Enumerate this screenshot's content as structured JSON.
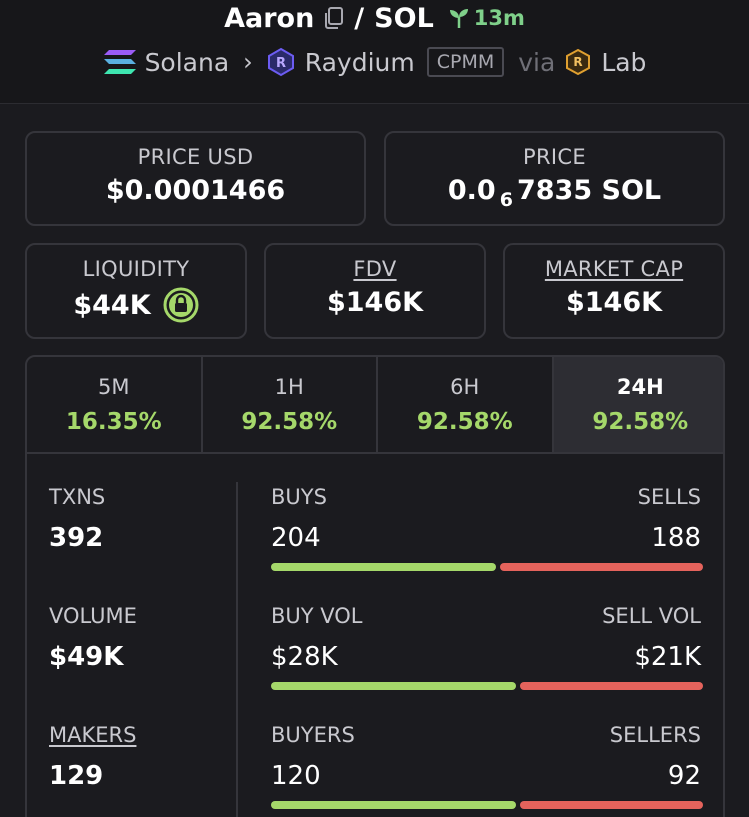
{
  "header": {
    "token_name": "Aaron",
    "separator": "/",
    "quote": "SOL",
    "age": "13m",
    "chain": "Solana",
    "dex": "Raydium",
    "pool_type": "CPMM",
    "via": "via",
    "launchpad": "Lab"
  },
  "stats": {
    "price_usd_label": "PRICE USD",
    "price_usd": "$0.0001466",
    "price_label": "PRICE",
    "price_prefix": "0.0",
    "price_zeros": "6",
    "price_suffix": "7835 SOL",
    "liquidity_label": "LIQUIDITY",
    "liquidity": "$44K",
    "fdv_label": "FDV",
    "fdv": "$146K",
    "mcap_label": "MARKET CAP",
    "mcap": "$146K"
  },
  "tabs": [
    {
      "label": "5M",
      "pct": "16.35%"
    },
    {
      "label": "1H",
      "pct": "92.58%"
    },
    {
      "label": "6H",
      "pct": "92.58%"
    },
    {
      "label": "24H",
      "pct": "92.58%"
    }
  ],
  "metrics": {
    "txns_label": "TXNS",
    "txns": "392",
    "volume_label": "VOLUME",
    "volume": "$49K",
    "makers_label": "MAKERS",
    "makers": "129",
    "buys_label": "BUYS",
    "buys": "204",
    "sells_label": "SELLS",
    "sells": "188",
    "buy_vol_label": "BUY VOL",
    "buy_vol": "$28K",
    "sell_vol_label": "SELL VOL",
    "sell_vol": "$21K",
    "buyers_label": "BUYERS",
    "buyers": "120",
    "sellers_label": "SELLERS",
    "sellers": "92"
  },
  "colors": {
    "positive": "#a5d86a",
    "negative": "#e5635c",
    "age": "#7fd08a"
  },
  "icons": {
    "copy": "copy-icon",
    "age": "sprout-icon",
    "chain": "solana-icon",
    "dex": "raydium-icon",
    "launchpad": "lab-icon",
    "liquidity_lock": "lock-icon"
  }
}
